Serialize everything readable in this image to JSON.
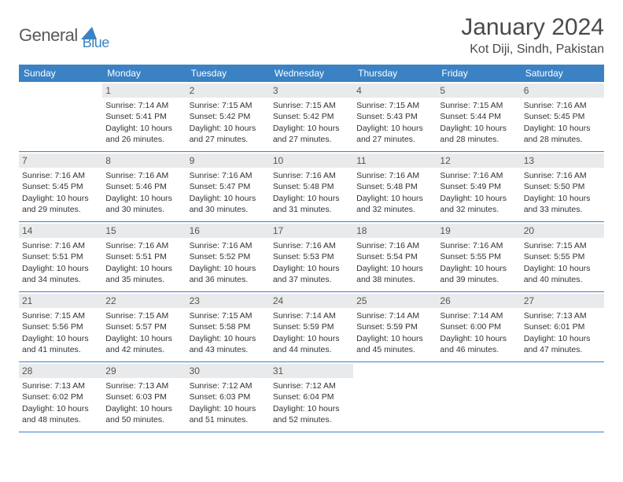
{
  "brand": {
    "text1": "General",
    "text2": "Blue"
  },
  "title": "January 2024",
  "location": "Kot Diji, Sindh, Pakistan",
  "colors": {
    "accent": "#3b82c4",
    "header_bg": "#3b82c4",
    "daynum_bg": "#e9eaec",
    "text": "#333333"
  },
  "weekdays": [
    "Sunday",
    "Monday",
    "Tuesday",
    "Wednesday",
    "Thursday",
    "Friday",
    "Saturday"
  ],
  "weeks": [
    [
      {
        "n": "",
        "sr": "",
        "ss": "",
        "dl": ""
      },
      {
        "n": "1",
        "sr": "Sunrise: 7:14 AM",
        "ss": "Sunset: 5:41 PM",
        "dl": "Daylight: 10 hours and 26 minutes."
      },
      {
        "n": "2",
        "sr": "Sunrise: 7:15 AM",
        "ss": "Sunset: 5:42 PM",
        "dl": "Daylight: 10 hours and 27 minutes."
      },
      {
        "n": "3",
        "sr": "Sunrise: 7:15 AM",
        "ss": "Sunset: 5:42 PM",
        "dl": "Daylight: 10 hours and 27 minutes."
      },
      {
        "n": "4",
        "sr": "Sunrise: 7:15 AM",
        "ss": "Sunset: 5:43 PM",
        "dl": "Daylight: 10 hours and 27 minutes."
      },
      {
        "n": "5",
        "sr": "Sunrise: 7:15 AM",
        "ss": "Sunset: 5:44 PM",
        "dl": "Daylight: 10 hours and 28 minutes."
      },
      {
        "n": "6",
        "sr": "Sunrise: 7:16 AM",
        "ss": "Sunset: 5:45 PM",
        "dl": "Daylight: 10 hours and 28 minutes."
      }
    ],
    [
      {
        "n": "7",
        "sr": "Sunrise: 7:16 AM",
        "ss": "Sunset: 5:45 PM",
        "dl": "Daylight: 10 hours and 29 minutes."
      },
      {
        "n": "8",
        "sr": "Sunrise: 7:16 AM",
        "ss": "Sunset: 5:46 PM",
        "dl": "Daylight: 10 hours and 30 minutes."
      },
      {
        "n": "9",
        "sr": "Sunrise: 7:16 AM",
        "ss": "Sunset: 5:47 PM",
        "dl": "Daylight: 10 hours and 30 minutes."
      },
      {
        "n": "10",
        "sr": "Sunrise: 7:16 AM",
        "ss": "Sunset: 5:48 PM",
        "dl": "Daylight: 10 hours and 31 minutes."
      },
      {
        "n": "11",
        "sr": "Sunrise: 7:16 AM",
        "ss": "Sunset: 5:48 PM",
        "dl": "Daylight: 10 hours and 32 minutes."
      },
      {
        "n": "12",
        "sr": "Sunrise: 7:16 AM",
        "ss": "Sunset: 5:49 PM",
        "dl": "Daylight: 10 hours and 32 minutes."
      },
      {
        "n": "13",
        "sr": "Sunrise: 7:16 AM",
        "ss": "Sunset: 5:50 PM",
        "dl": "Daylight: 10 hours and 33 minutes."
      }
    ],
    [
      {
        "n": "14",
        "sr": "Sunrise: 7:16 AM",
        "ss": "Sunset: 5:51 PM",
        "dl": "Daylight: 10 hours and 34 minutes."
      },
      {
        "n": "15",
        "sr": "Sunrise: 7:16 AM",
        "ss": "Sunset: 5:51 PM",
        "dl": "Daylight: 10 hours and 35 minutes."
      },
      {
        "n": "16",
        "sr": "Sunrise: 7:16 AM",
        "ss": "Sunset: 5:52 PM",
        "dl": "Daylight: 10 hours and 36 minutes."
      },
      {
        "n": "17",
        "sr": "Sunrise: 7:16 AM",
        "ss": "Sunset: 5:53 PM",
        "dl": "Daylight: 10 hours and 37 minutes."
      },
      {
        "n": "18",
        "sr": "Sunrise: 7:16 AM",
        "ss": "Sunset: 5:54 PM",
        "dl": "Daylight: 10 hours and 38 minutes."
      },
      {
        "n": "19",
        "sr": "Sunrise: 7:16 AM",
        "ss": "Sunset: 5:55 PM",
        "dl": "Daylight: 10 hours and 39 minutes."
      },
      {
        "n": "20",
        "sr": "Sunrise: 7:15 AM",
        "ss": "Sunset: 5:55 PM",
        "dl": "Daylight: 10 hours and 40 minutes."
      }
    ],
    [
      {
        "n": "21",
        "sr": "Sunrise: 7:15 AM",
        "ss": "Sunset: 5:56 PM",
        "dl": "Daylight: 10 hours and 41 minutes."
      },
      {
        "n": "22",
        "sr": "Sunrise: 7:15 AM",
        "ss": "Sunset: 5:57 PM",
        "dl": "Daylight: 10 hours and 42 minutes."
      },
      {
        "n": "23",
        "sr": "Sunrise: 7:15 AM",
        "ss": "Sunset: 5:58 PM",
        "dl": "Daylight: 10 hours and 43 minutes."
      },
      {
        "n": "24",
        "sr": "Sunrise: 7:14 AM",
        "ss": "Sunset: 5:59 PM",
        "dl": "Daylight: 10 hours and 44 minutes."
      },
      {
        "n": "25",
        "sr": "Sunrise: 7:14 AM",
        "ss": "Sunset: 5:59 PM",
        "dl": "Daylight: 10 hours and 45 minutes."
      },
      {
        "n": "26",
        "sr": "Sunrise: 7:14 AM",
        "ss": "Sunset: 6:00 PM",
        "dl": "Daylight: 10 hours and 46 minutes."
      },
      {
        "n": "27",
        "sr": "Sunrise: 7:13 AM",
        "ss": "Sunset: 6:01 PM",
        "dl": "Daylight: 10 hours and 47 minutes."
      }
    ],
    [
      {
        "n": "28",
        "sr": "Sunrise: 7:13 AM",
        "ss": "Sunset: 6:02 PM",
        "dl": "Daylight: 10 hours and 48 minutes."
      },
      {
        "n": "29",
        "sr": "Sunrise: 7:13 AM",
        "ss": "Sunset: 6:03 PM",
        "dl": "Daylight: 10 hours and 50 minutes."
      },
      {
        "n": "30",
        "sr": "Sunrise: 7:12 AM",
        "ss": "Sunset: 6:03 PM",
        "dl": "Daylight: 10 hours and 51 minutes."
      },
      {
        "n": "31",
        "sr": "Sunrise: 7:12 AM",
        "ss": "Sunset: 6:04 PM",
        "dl": "Daylight: 10 hours and 52 minutes."
      },
      {
        "n": "",
        "sr": "",
        "ss": "",
        "dl": ""
      },
      {
        "n": "",
        "sr": "",
        "ss": "",
        "dl": ""
      },
      {
        "n": "",
        "sr": "",
        "ss": "",
        "dl": ""
      }
    ]
  ]
}
